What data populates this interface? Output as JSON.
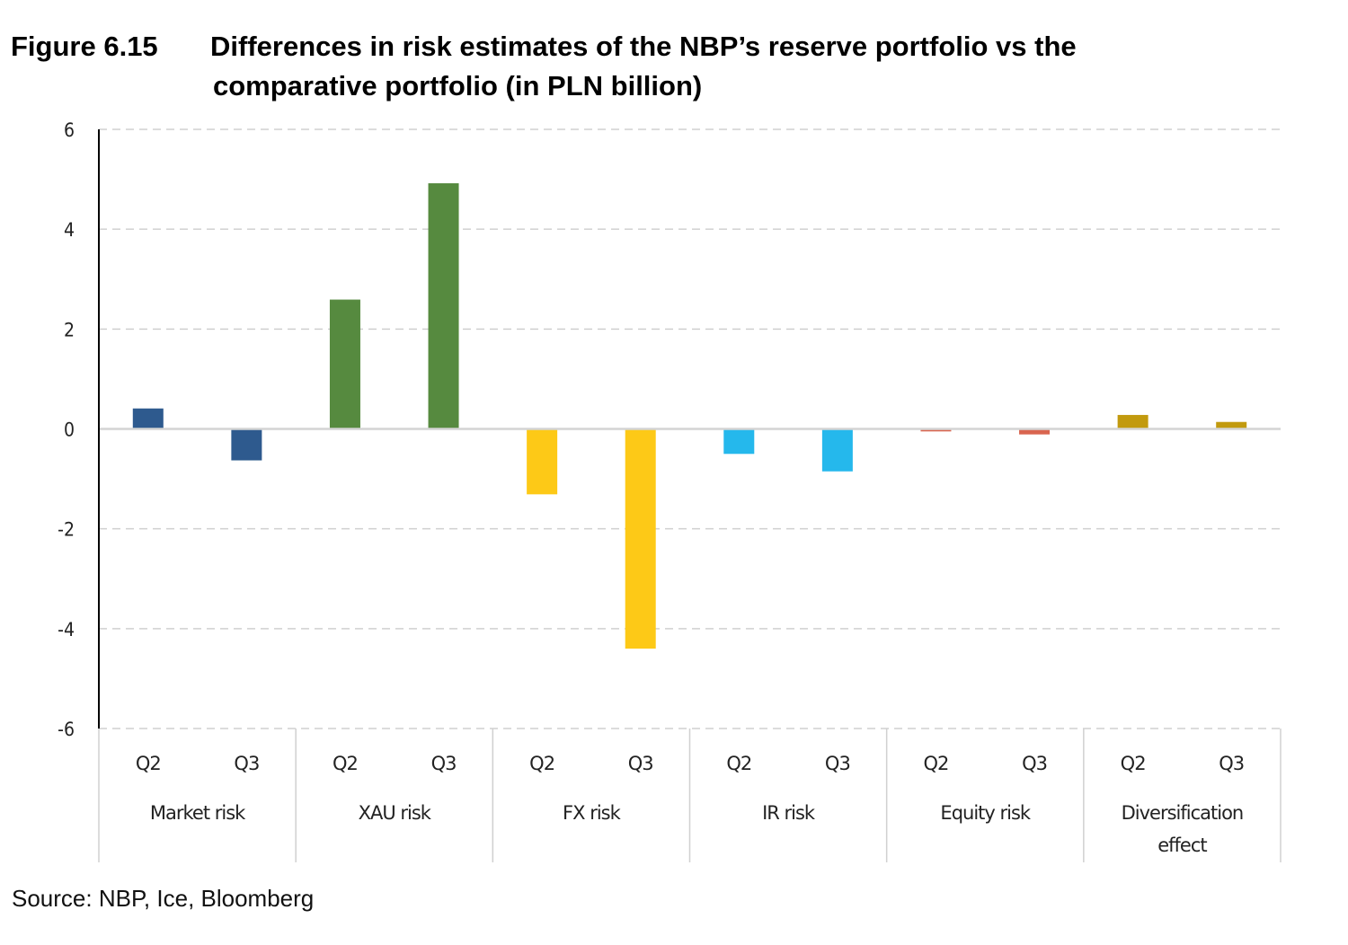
{
  "figure_number": "Figure 6.15",
  "title_line1": "Differences in risk estimates of the NBP’s reserve portfolio vs the",
  "title_line2": "comparative portfolio (in PLN billion)",
  "source": "Source: NBP, Ice, Bloomberg",
  "chart_data": {
    "type": "bar",
    "title": "Differences in risk estimates of the NBP’s reserve portfolio vs the comparative portfolio (in PLN billion)",
    "xlabel": "",
    "ylabel": "",
    "ylim": [
      -6,
      6
    ],
    "yticks": [
      6,
      4,
      2,
      0,
      -2,
      -4,
      -6
    ],
    "ytick_labels": [
      "6",
      "4",
      "2",
      "0",
      "-2",
      "-4",
      "-6"
    ],
    "grid": true,
    "legend": "none",
    "groups": [
      {
        "name": "Market risk",
        "color": "#2e5a8e",
        "categories": [
          "Q2",
          "Q3"
        ],
        "values": [
          0.41,
          -0.63
        ]
      },
      {
        "name": "XAU risk",
        "color": "#568a3f",
        "categories": [
          "Q2",
          "Q3"
        ],
        "values": [
          2.59,
          4.92
        ]
      },
      {
        "name": "FX risk",
        "color": "#fdc917",
        "categories": [
          "Q2",
          "Q3"
        ],
        "values": [
          -1.31,
          -4.4
        ]
      },
      {
        "name": "IR risk",
        "color": "#25b8ec",
        "categories": [
          "Q2",
          "Q3"
        ],
        "values": [
          -0.5,
          -0.85
        ]
      },
      {
        "name": "Equity risk",
        "color": "#d9654f",
        "categories": [
          "Q2",
          "Q3"
        ],
        "values": [
          -0.05,
          -0.11
        ]
      },
      {
        "name": "Diversification effect",
        "name_lines": [
          "Diversification",
          "effect"
        ],
        "color": "#c29a0e",
        "categories": [
          "Q2",
          "Q3"
        ],
        "values": [
          0.28,
          0.14
        ]
      }
    ]
  }
}
